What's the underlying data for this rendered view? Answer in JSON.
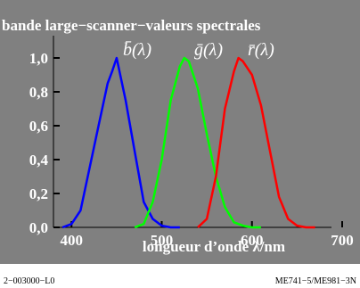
{
  "chart_data": {
    "type": "line",
    "title": "bande large−scanner−valeurs spectrales",
    "xlabel": "longueur d’onde λ/nm",
    "ylabel": "",
    "xlim": [
      380,
      700
    ],
    "ylim": [
      0,
      1.0
    ],
    "x_ticks": [
      400,
      500,
      600,
      700
    ],
    "y_ticks": [
      0.0,
      0.2,
      0.4,
      0.6,
      0.8,
      1.0
    ],
    "y_tick_labels": [
      "0,0",
      "0,2",
      "0,4",
      "0,6",
      "0,8",
      "1,0"
    ],
    "grid": false,
    "series": [
      {
        "name": "b̄(λ)",
        "color": "#0000ff",
        "x": [
          390,
          400,
          410,
          420,
          430,
          440,
          445,
          450,
          460,
          470,
          480,
          490,
          500,
          510,
          520
        ],
        "y": [
          0.0,
          0.02,
          0.1,
          0.35,
          0.6,
          0.85,
          0.92,
          1.0,
          0.75,
          0.45,
          0.15,
          0.05,
          0.01,
          0.0,
          0.0
        ]
      },
      {
        "name": "ḡ(λ)",
        "color": "#00ff00",
        "x": [
          470,
          480,
          490,
          500,
          510,
          520,
          525,
          530,
          540,
          550,
          560,
          570,
          580,
          590,
          600,
          610
        ],
        "y": [
          0.0,
          0.02,
          0.15,
          0.4,
          0.75,
          0.95,
          1.0,
          0.98,
          0.82,
          0.55,
          0.3,
          0.12,
          0.03,
          0.01,
          0.0,
          0.0
        ]
      },
      {
        "name": "r̄(λ)",
        "color": "#ff0000",
        "x": [
          540,
          550,
          560,
          570,
          580,
          585,
          590,
          600,
          610,
          620,
          630,
          640,
          650,
          660,
          670
        ],
        "y": [
          0.0,
          0.05,
          0.3,
          0.7,
          0.92,
          1.0,
          0.98,
          0.9,
          0.72,
          0.45,
          0.18,
          0.05,
          0.01,
          0.0,
          0.0
        ]
      }
    ]
  },
  "footer": {
    "left": "2−003000−L0",
    "right": "ME741−5/ME981−3N"
  },
  "colors": {
    "panel_background": "#808080",
    "text": "#ffffff",
    "footer_text": "#000000",
    "axis": "#000000"
  }
}
